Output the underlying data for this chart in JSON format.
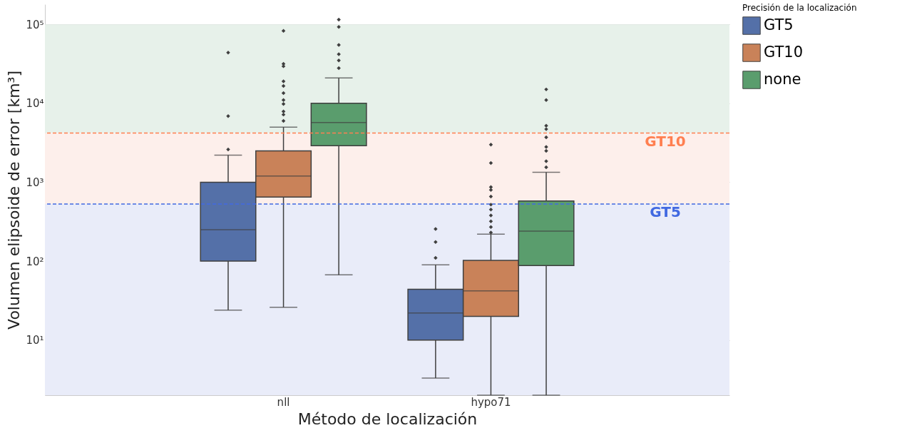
{
  "chart_data": {
    "type": "box",
    "xlabel": "Método de localización",
    "ylabel": "Volumen elipsoide de error [km³]",
    "legend_title": "Precisión de la localización",
    "categories": [
      "nll",
      "hypo71"
    ],
    "log": true,
    "ylim": [
      2,
      180000
    ],
    "yticks": [
      {
        "value": 10,
        "label": "10¹"
      },
      {
        "value": 100,
        "label": "10²"
      },
      {
        "value": 1000,
        "label": "10³"
      },
      {
        "value": 10000,
        "label": "10⁴"
      },
      {
        "value": 100000,
        "label": "10⁵"
      }
    ],
    "grid": "y",
    "legend": "right",
    "marker": "diamond",
    "series": [
      {
        "name": "GT5",
        "color": "#5470a8",
        "boxes": [
          {
            "low": 24,
            "q1": 100,
            "median": 250,
            "q3": 1000,
            "high": 2200,
            "outliers": [
              2600,
              6900,
              44000
            ]
          },
          {
            "low": 3.3,
            "q1": 10,
            "median": 22,
            "q3": 44,
            "high": 90,
            "outliers": [
              110,
              175,
              255
            ]
          }
        ]
      },
      {
        "name": "GT10",
        "color": "#c98259",
        "boxes": [
          {
            "low": 26,
            "q1": 650,
            "median": 1200,
            "q3": 2500,
            "high": 5000,
            "outliers": [
              6000,
              7200,
              7900,
              9800,
              11000,
              13500,
              16600,
              19000,
              29500,
              31600,
              83000
            ]
          },
          {
            "low": 2,
            "q1": 20,
            "median": 42,
            "q3": 102,
            "high": 220,
            "outliers": [
              230,
              270,
              320,
              380,
              450,
              520,
              660,
              800,
              870,
              1750,
              3000
            ]
          }
        ]
      },
      {
        "name": "none",
        "color": "#5a9d6d",
        "boxes": [
          {
            "low": 67,
            "q1": 2900,
            "median": 5700,
            "q3": 10000,
            "high": 21000,
            "outliers": [
              28000,
              35000,
              42000,
              55000,
              93000,
              115000
            ]
          },
          {
            "low": 2,
            "q1": 88,
            "median": 240,
            "q3": 580,
            "high": 1340,
            "outliers": [
              1550,
              1850,
              2500,
              2800,
              3700,
              4700,
              5200,
              11000,
              15000
            ]
          }
        ]
      }
    ],
    "bands": [
      {
        "axis": "y",
        "from": 2,
        "to": 530,
        "color": "#e9ecf9"
      },
      {
        "axis": "y",
        "from": 530,
        "to": 4200,
        "color": "#fdefeb"
      },
      {
        "axis": "y",
        "from": 4200,
        "to": 100000,
        "color": "#e7f1ea"
      }
    ],
    "ref_lines": [
      {
        "axis": "y",
        "value": 530,
        "label": "GT5",
        "color": "#4169e1",
        "line_style": "dashed"
      },
      {
        "axis": "y",
        "value": 4200,
        "label": "GT10",
        "color": "#ff7f50",
        "line_style": "dashed"
      }
    ]
  }
}
